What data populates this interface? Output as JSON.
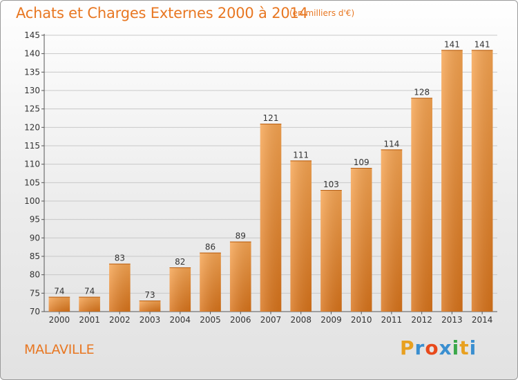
{
  "header": {
    "title": "Achats et Charges Externes 2000 à 2014",
    "unit": "(en milliers d'€)"
  },
  "footer": {
    "commune": "MALAVILLE",
    "logo_text": "Proxiti",
    "logo_colors": [
      "#e8a020",
      "#3a8fd0",
      "#e84a1c",
      "#3a8fd0",
      "#3aa84a",
      "#e8a020",
      "#3a8fd0"
    ]
  },
  "colors": {
    "accent": "#e87722",
    "bar_light": "#f7a552",
    "bar_dark": "#d9741b",
    "grid": "#c8c8c8"
  },
  "chart_data": {
    "type": "bar",
    "title": "Achats et Charges Externes 2000 à 2014",
    "subtitle": "(en milliers d'€)",
    "xlabel": "",
    "ylabel": "",
    "categories": [
      "2000",
      "2001",
      "2002",
      "2003",
      "2004",
      "2005",
      "2006",
      "2007",
      "2008",
      "2009",
      "2010",
      "2011",
      "2012",
      "2013",
      "2014"
    ],
    "values": [
      74,
      74,
      83,
      73,
      82,
      86,
      89,
      121,
      111,
      103,
      109,
      114,
      128,
      141,
      141
    ],
    "ylim": [
      70,
      145
    ],
    "yticks": [
      70,
      75,
      80,
      85,
      90,
      95,
      100,
      105,
      110,
      115,
      120,
      125,
      130,
      135,
      140,
      145
    ],
    "grid": "horizontal",
    "data_labels": true
  }
}
